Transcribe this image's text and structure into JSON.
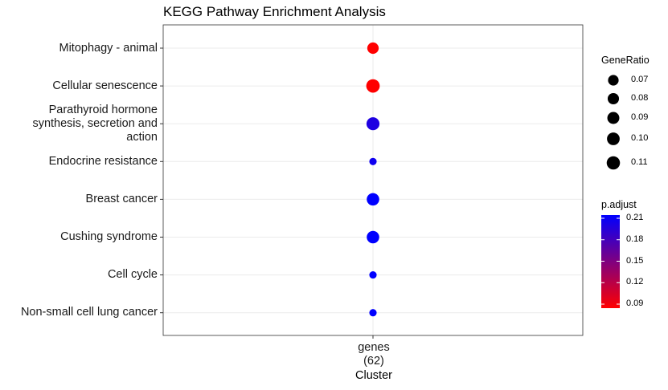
{
  "chart_data": {
    "type": "scatter",
    "title": "KEGG Pathway Enrichment Analysis",
    "xlabel": "Cluster",
    "ylabel": "",
    "categories_x": [
      "genes\n(62)"
    ],
    "categories_y": [
      "Mitophagy - animal",
      "Cellular senescence",
      "Parathyroid hormone\nsynthesis, secretion and\naction",
      "Endocrine resistance",
      "Breast cancer",
      "Cushing syndrome",
      "Cell cycle",
      "Non-small cell lung cancer"
    ],
    "points": [
      {
        "term": "Mitophagy - animal",
        "gene_ratio": 0.081,
        "p_adjust": 0.09
      },
      {
        "term": "Cellular senescence",
        "gene_ratio": 0.113,
        "p_adjust": 0.09
      },
      {
        "term": "Parathyroid hormone synthesis, secretion and action",
        "gene_ratio": 0.105,
        "p_adjust": 0.196
      },
      {
        "term": "Endocrine resistance",
        "gene_ratio": 0.065,
        "p_adjust": 0.203
      },
      {
        "term": "Breast cancer",
        "gene_ratio": 0.097,
        "p_adjust": 0.212
      },
      {
        "term": "Cushing syndrome",
        "gene_ratio": 0.097,
        "p_adjust": 0.212
      },
      {
        "term": "Cell cycle",
        "gene_ratio": 0.065,
        "p_adjust": 0.212
      },
      {
        "term": "Non-small cell lung cancer",
        "gene_ratio": 0.065,
        "p_adjust": 0.212
      }
    ],
    "size_legend": {
      "title": "GeneRatio",
      "values": [
        0.07,
        0.08,
        0.09,
        0.1,
        0.11
      ],
      "labels": [
        "0.07",
        "0.08",
        "0.09",
        "0.10",
        "0.11"
      ]
    },
    "color_legend": {
      "title": "p.adjust",
      "min": 0.09,
      "max": 0.21,
      "ticks": [
        0.09,
        0.12,
        0.15,
        0.18,
        0.21
      ],
      "tick_labels": [
        "0.09",
        "0.12",
        "0.15",
        "0.18",
        "0.21"
      ],
      "low_color": "#ff0000",
      "high_color": "#0000ff"
    },
    "grid": true,
    "legend_position": "right"
  }
}
